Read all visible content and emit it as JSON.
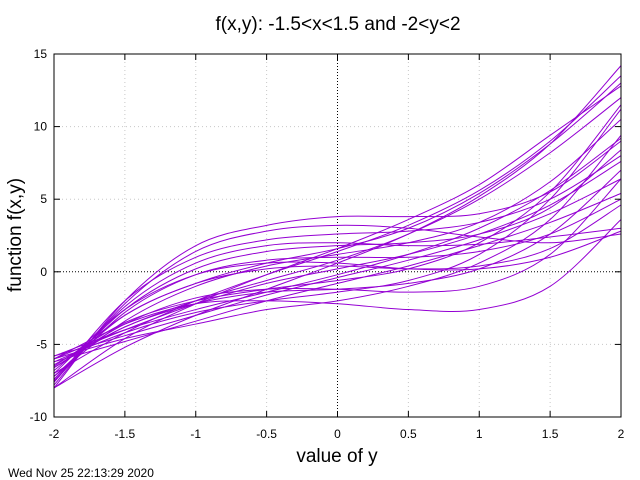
{
  "chart_data": {
    "type": "line",
    "title": "f(x,y): -1.5<x<1.5 and -2<y<2",
    "xlabel": "value of y",
    "ylabel": "function f(x,y)",
    "xlim": [
      -2,
      2
    ],
    "ylim": [
      -10,
      15
    ],
    "x_ticks": [
      -2,
      -1.5,
      -1,
      -0.5,
      0,
      0.5,
      1,
      1.5,
      2
    ],
    "x_tick_labels": [
      "-2",
      "-1.5",
      "-1",
      "-0.5",
      "0",
      "0.5",
      "1",
      "1.5",
      "2"
    ],
    "y_ticks": [
      -10,
      -5,
      0,
      5,
      10,
      15
    ],
    "y_tick_labels": [
      "-10",
      "-5",
      "0",
      "5",
      "10",
      "15"
    ],
    "grid": true,
    "zero_axes": true,
    "line_color": "#9400d3",
    "series": [
      {
        "x": [
          -2,
          -1.5,
          -1,
          -0.5,
          0,
          0.5,
          1,
          1.5,
          2
        ],
        "values": [
          -6.0,
          -4.0,
          -2.2,
          -0.8,
          0.2,
          1.2,
          2.6,
          4.6,
          7.6
        ]
      },
      {
        "x": [
          -2,
          -1.5,
          -1,
          -0.5,
          0,
          0.5,
          1,
          1.5,
          2
        ],
        "values": [
          -7.5,
          -2.8,
          -0.2,
          0.8,
          1.0,
          1.0,
          1.4,
          2.6,
          5.0
        ]
      },
      {
        "x": [
          -2,
          -1.5,
          -1,
          -0.5,
          0,
          0.5,
          1,
          1.5,
          2
        ],
        "values": [
          -6.5,
          -3.5,
          -2.0,
          -1.2,
          -0.6,
          0.2,
          2.0,
          5.5,
          11.5
        ]
      },
      {
        "x": [
          -2,
          -1.5,
          -1,
          -0.5,
          0,
          0.5,
          1,
          1.5,
          2
        ],
        "values": [
          -8.0,
          -2.0,
          1.8,
          3.2,
          3.8,
          3.8,
          4.0,
          5.5,
          9.0
        ]
      },
      {
        "x": [
          -2,
          -1.5,
          -1,
          -0.5,
          0,
          0.5,
          1,
          1.5,
          2
        ],
        "values": [
          -7.2,
          -3.4,
          -1.0,
          0.4,
          1.2,
          2.0,
          3.4,
          6.2,
          10.5
        ]
      },
      {
        "x": [
          -2,
          -1.5,
          -1,
          -0.5,
          0,
          0.5,
          1,
          1.5,
          2
        ],
        "values": [
          -5.8,
          -4.4,
          -3.0,
          -1.6,
          -0.4,
          0.8,
          2.2,
          4.0,
          6.4
        ]
      },
      {
        "x": [
          -2,
          -1.5,
          -1,
          -0.5,
          0,
          0.5,
          1,
          1.5,
          2
        ],
        "values": [
          -7.0,
          -4.2,
          -2.0,
          -0.2,
          1.4,
          3.2,
          5.6,
          9.0,
          13.5
        ]
      },
      {
        "x": [
          -2,
          -1.5,
          -1,
          -0.5,
          0,
          0.5,
          1,
          1.5,
          2
        ],
        "values": [
          -7.6,
          -2.4,
          0.6,
          1.8,
          2.0,
          1.8,
          1.9,
          2.4,
          3.0
        ]
      },
      {
        "x": [
          -2,
          -1.5,
          -1,
          -0.5,
          0,
          0.5,
          1,
          1.5,
          2
        ],
        "values": [
          -6.8,
          -3.0,
          -0.8,
          0.2,
          0.4,
          0.2,
          0.4,
          1.6,
          4.6
        ]
      },
      {
        "x": [
          -2,
          -1.5,
          -1,
          -0.5,
          0,
          0.5,
          1,
          1.5,
          2
        ],
        "values": [
          -8.0,
          -5.2,
          -3.0,
          -1.2,
          0.6,
          2.6,
          5.2,
          8.8,
          14.2
        ]
      },
      {
        "x": [
          -2,
          -1.5,
          -1,
          -0.5,
          0,
          0.5,
          1,
          1.5,
          2
        ],
        "values": [
          -6.2,
          -4.2,
          -2.8,
          -2.0,
          -1.4,
          -0.6,
          1.2,
          5.0,
          11.2
        ]
      },
      {
        "x": [
          -2,
          -1.5,
          -1,
          -0.5,
          0,
          0.5,
          1,
          1.5,
          2
        ],
        "values": [
          -7.6,
          -2.0,
          1.0,
          2.2,
          2.6,
          2.8,
          3.4,
          5.0,
          8.0
        ]
      },
      {
        "x": [
          -2,
          -1.5,
          -1,
          -0.5,
          0,
          0.5,
          1,
          1.5,
          2
        ],
        "values": [
          -6.2,
          -4.8,
          -3.4,
          -2.0,
          -0.8,
          0.4,
          1.8,
          3.4,
          5.4
        ]
      },
      {
        "x": [
          -2,
          -1.5,
          -1,
          -0.5,
          0,
          0.5,
          1,
          1.5,
          2
        ],
        "values": [
          -6.6,
          -3.8,
          -2.2,
          -1.4,
          -1.2,
          -0.8,
          0.2,
          2.6,
          7.0
        ]
      },
      {
        "x": [
          -2,
          -1.5,
          -1,
          -0.5,
          0,
          0.5,
          1,
          1.5,
          2
        ],
        "values": [
          -8.0,
          -4.6,
          -2.2,
          -0.2,
          1.6,
          3.6,
          6.0,
          9.4,
          12.8
        ]
      },
      {
        "x": [
          -2,
          -1.5,
          -1,
          -0.5,
          0,
          0.5,
          1,
          1.5,
          2
        ],
        "values": [
          -7.0,
          -2.6,
          -0.2,
          0.6,
          0.6,
          0.2,
          0.2,
          1.0,
          2.8
        ]
      },
      {
        "x": [
          -2,
          -1.5,
          -1,
          -0.5,
          0,
          0.5,
          1,
          1.5,
          2
        ],
        "values": [
          -6.0,
          -4.6,
          -3.6,
          -2.6,
          -2.0,
          -1.0,
          0.6,
          3.6,
          9.4
        ]
      },
      {
        "x": [
          -2,
          -1.5,
          -1,
          -0.5,
          0,
          0.5,
          1,
          1.5,
          2
        ],
        "values": [
          -7.8,
          -2.2,
          1.4,
          2.8,
          3.2,
          3.0,
          2.4,
          2.0,
          2.6
        ]
      },
      {
        "x": [
          -2,
          -1.5,
          -1,
          -0.5,
          0,
          0.5,
          1,
          1.5,
          2
        ],
        "values": [
          -6.4,
          -3.8,
          -2.0,
          -0.6,
          0.8,
          2.6,
          5.0,
          8.2,
          12.0
        ]
      },
      {
        "x": [
          -2,
          -1.5,
          -1,
          -0.5,
          0,
          0.5,
          1,
          1.5,
          2
        ],
        "values": [
          -6.0,
          -3.6,
          -2.2,
          -2.0,
          -2.2,
          -2.6,
          -2.6,
          -1.0,
          3.6
        ]
      },
      {
        "x": [
          -2,
          -1.5,
          -1,
          -0.5,
          0,
          0.5,
          1,
          1.5,
          2
        ],
        "values": [
          -7.2,
          -3.0,
          -0.8,
          0.6,
          1.6,
          3.0,
          5.4,
          8.8,
          13.0
        ]
      },
      {
        "x": [
          -2,
          -1.5,
          -1,
          -0.5,
          0,
          0.5,
          1,
          1.5,
          2
        ],
        "values": [
          -6.6,
          -3.6,
          -1.8,
          -1.2,
          -1.2,
          -1.4,
          -1.0,
          1.2,
          6.4
        ]
      },
      {
        "x": [
          -2,
          -1.5,
          -1,
          -0.5,
          0,
          0.5,
          1,
          1.5,
          2
        ],
        "values": [
          -7.4,
          -2.6,
          0.2,
          1.4,
          1.8,
          2.0,
          2.6,
          4.4,
          8.4
        ]
      },
      {
        "x": [
          -2,
          -1.5,
          -1,
          -0.5,
          0,
          0.5,
          1,
          1.5,
          2
        ],
        "values": [
          -5.8,
          -4.0,
          -2.6,
          -1.4,
          -0.2,
          1.2,
          3.0,
          5.6,
          9.2
        ]
      }
    ]
  },
  "footer": {
    "timestamp": "Wed Nov 25 22:13:29 2020"
  }
}
